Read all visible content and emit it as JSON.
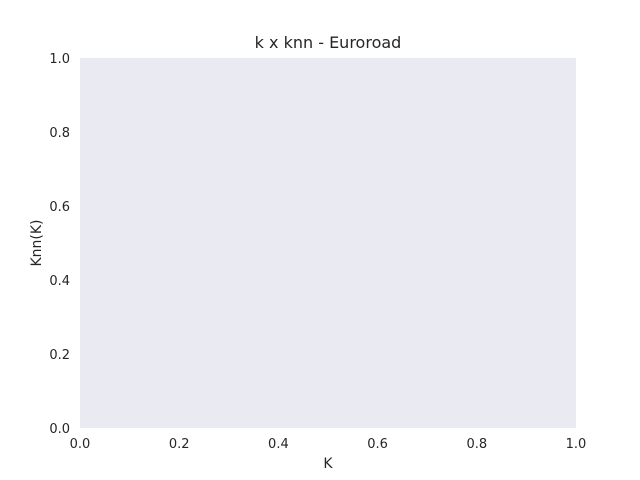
{
  "chart_data": {
    "type": "scatter",
    "title": "k x knn - Euroroad",
    "xlabel": "K",
    "ylabel": "Knn(K)",
    "xlim": [
      0.0,
      1.0
    ],
    "ylim": [
      0.0,
      1.0
    ],
    "x_ticks": [
      "0.0",
      "0.2",
      "0.4",
      "0.6",
      "0.8",
      "1.0"
    ],
    "y_ticks": [
      "0.0",
      "0.2",
      "0.4",
      "0.6",
      "0.8",
      "1.0"
    ],
    "series": [],
    "grid": false,
    "colors": {
      "plot_background": "#eaeaf2",
      "text": "#262626"
    }
  }
}
